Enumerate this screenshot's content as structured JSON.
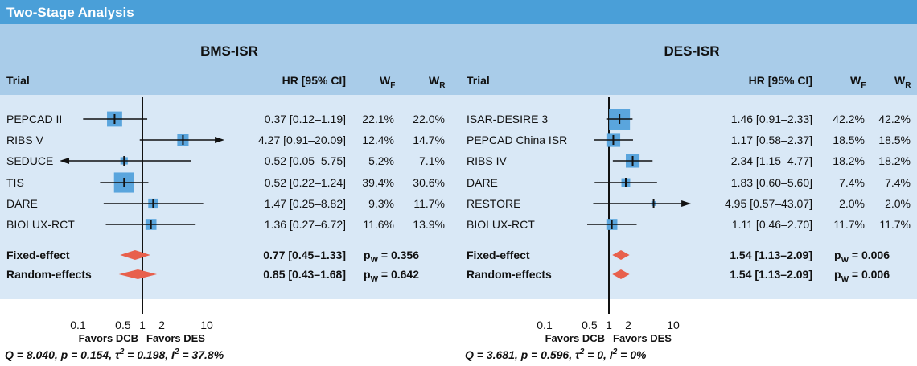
{
  "header": {
    "title": "Two-Stage Analysis"
  },
  "chart_data": [
    {
      "type": "forest",
      "title": "BMS-ISR",
      "log_scale": true,
      "xlim": [
        0.065,
        15
      ],
      "xticks": [
        0.1,
        0.5,
        1,
        2,
        10
      ],
      "reference_line": 1,
      "box_color": "#5aa5dd",
      "diamond_color": "#e8604c",
      "trial_header": "Trial",
      "ci_header": "HR [95% CI]",
      "weight_headers": [
        [
          {
            "text": "W"
          },
          {
            "text": "F",
            "sub": true
          }
        ],
        [
          {
            "text": "W"
          },
          {
            "text": "R",
            "sub": true
          }
        ]
      ],
      "studies": [
        {
          "name": "PEPCAD II",
          "hr": 0.37,
          "lower": 0.12,
          "upper": 1.19,
          "ci_label": "0.37 [0.12–1.19]",
          "wf": 22.1,
          "wf_label": "22.1%",
          "wr": 22.0,
          "wr_label": "22.0%"
        },
        {
          "name": "RIBS V",
          "hr": 4.27,
          "lower": 0.91,
          "upper": 20.09,
          "ci_label": "4.27 [0.91–20.09]",
          "wf": 12.4,
          "wf_label": "12.4%",
          "wr": 14.7,
          "wr_label": "14.7%"
        },
        {
          "name": "SEDUCE",
          "hr": 0.52,
          "lower": 0.05,
          "upper": 5.75,
          "ci_label": "0.52 [0.05–5.75]",
          "wf": 5.2,
          "wf_label": "5.2%",
          "wr": 7.1,
          "wr_label": "7.1%"
        },
        {
          "name": "TIS",
          "hr": 0.52,
          "lower": 0.22,
          "upper": 1.24,
          "ci_label": "0.52 [0.22–1.24]",
          "wf": 39.4,
          "wf_label": "39.4%",
          "wr": 30.6,
          "wr_label": "30.6%"
        },
        {
          "name": "DARE",
          "hr": 1.47,
          "lower": 0.25,
          "upper": 8.82,
          "ci_label": "1.47 [0.25–8.82]",
          "wf": 9.3,
          "wf_label": "9.3%",
          "wr": 11.7,
          "wr_label": "11.7%"
        },
        {
          "name": "BIOLUX-RCT",
          "hr": 1.36,
          "lower": 0.27,
          "upper": 6.72,
          "ci_label": "1.36 [0.27–6.72]",
          "wf": 11.6,
          "wf_label": "11.6%",
          "wr": 13.9,
          "wr_label": "13.9%"
        }
      ],
      "pooled": [
        {
          "name": "Fixed-effect",
          "hr": 0.77,
          "lower": 0.45,
          "upper": 1.33,
          "ci_label": "0.77 [0.45–1.33]",
          "p": [
            {
              "text": "p"
            },
            {
              "text": "W",
              "sub": true
            },
            {
              "text": " = 0.356"
            }
          ]
        },
        {
          "name": "Random-effects",
          "hr": 0.85,
          "lower": 0.43,
          "upper": 1.68,
          "ci_label": "0.85 [0.43–1.68]",
          "p": [
            {
              "text": "p"
            },
            {
              "text": "W",
              "sub": true
            },
            {
              "text": " = 0.642"
            }
          ]
        }
      ],
      "favors": [
        "Favors DCB",
        "Favors DES"
      ],
      "heterogeneity": [
        {
          "text": "Q = 8.040, p = 0.154, τ"
        },
        {
          "text": "2",
          "sup": true
        },
        {
          "text": " = 0.198, I"
        },
        {
          "text": "2",
          "sup": true
        },
        {
          "text": " = 37.8%"
        }
      ]
    },
    {
      "type": "forest",
      "title": "DES-ISR",
      "log_scale": true,
      "xlim": [
        0.065,
        15
      ],
      "xticks": [
        0.1,
        0.5,
        1,
        2,
        10
      ],
      "reference_line": 1,
      "box_color": "#5aa5dd",
      "diamond_color": "#e8604c",
      "trial_header": "Trial",
      "ci_header": "HR [95% CI]",
      "weight_headers": [
        [
          {
            "text": "W"
          },
          {
            "text": "F",
            "sub": true
          }
        ],
        [
          {
            "text": "W"
          },
          {
            "text": "R",
            "sub": true
          }
        ]
      ],
      "studies": [
        {
          "name": "ISAR-DESIRE 3",
          "hr": 1.46,
          "lower": 0.91,
          "upper": 2.33,
          "ci_label": "1.46 [0.91–2.33]",
          "wf": 42.2,
          "wf_label": "42.2%",
          "wr": 42.2,
          "wr_label": "42.2%"
        },
        {
          "name": "PEPCAD China ISR",
          "hr": 1.17,
          "lower": 0.58,
          "upper": 2.37,
          "ci_label": "1.17 [0.58–2.37]",
          "wf": 18.5,
          "wf_label": "18.5%",
          "wr": 18.5,
          "wr_label": "18.5%"
        },
        {
          "name": "RIBS IV",
          "hr": 2.34,
          "lower": 1.15,
          "upper": 4.77,
          "ci_label": "2.34 [1.15–4.77]",
          "wf": 18.2,
          "wf_label": "18.2%",
          "wr": 18.2,
          "wr_label": "18.2%"
        },
        {
          "name": "DARE",
          "hr": 1.83,
          "lower": 0.6,
          "upper": 5.6,
          "ci_label": "1.83 [0.60–5.60]",
          "wf": 7.4,
          "wf_label": "7.4%",
          "wr": 7.4,
          "wr_label": "7.4%"
        },
        {
          "name": "RESTORE",
          "hr": 4.95,
          "lower": 0.57,
          "upper": 43.07,
          "ci_label": "4.95 [0.57–43.07]",
          "wf": 2.0,
          "wf_label": "2.0%",
          "wr": 2.0,
          "wr_label": "2.0%"
        },
        {
          "name": "BIOLUX-RCT",
          "hr": 1.11,
          "lower": 0.46,
          "upper": 2.7,
          "ci_label": "1.11 [0.46–2.70]",
          "wf": 11.7,
          "wf_label": "11.7%",
          "wr": 11.7,
          "wr_label": "11.7%"
        }
      ],
      "pooled": [
        {
          "name": "Fixed-effect",
          "hr": 1.54,
          "lower": 1.13,
          "upper": 2.09,
          "ci_label": "1.54 [1.13–2.09]",
          "p": [
            {
              "text": "p"
            },
            {
              "text": "W",
              "sub": true
            },
            {
              "text": " = 0.006"
            }
          ]
        },
        {
          "name": "Random-effects",
          "hr": 1.54,
          "lower": 1.13,
          "upper": 2.09,
          "ci_label": "1.54 [1.13–2.09]",
          "p": [
            {
              "text": "p"
            },
            {
              "text": "W",
              "sub": true
            },
            {
              "text": " = 0.006"
            }
          ]
        }
      ],
      "favors": [
        "Favors DCB",
        "Favors DES"
      ],
      "heterogeneity": [
        {
          "text": "Q = 3.681, p = 0.596, τ"
        },
        {
          "text": "2",
          "sup": true
        },
        {
          "text": " = 0, I"
        },
        {
          "text": "2",
          "sup": true
        },
        {
          "text": " = 0%"
        }
      ]
    }
  ]
}
